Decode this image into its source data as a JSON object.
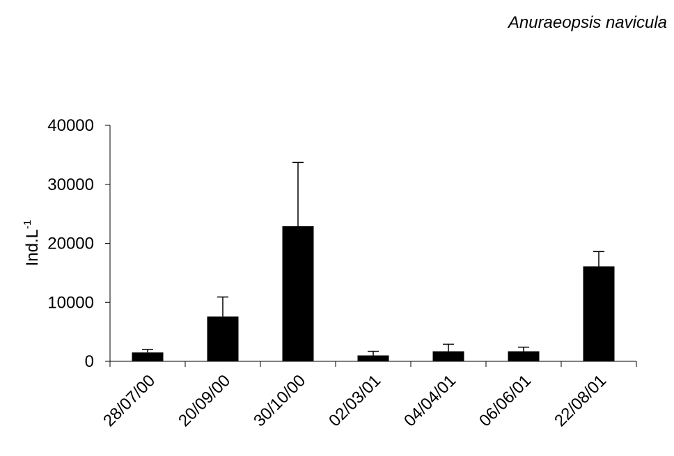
{
  "chart_data": {
    "type": "bar",
    "title": "Anuraeopsis navicula",
    "ylabel": "Ind.L",
    "ylabel_superscript": "-1",
    "xlabel": "",
    "categories": [
      "28/07/00",
      "20/09/00",
      "30/10/00",
      "02/03/01",
      "04/04/01",
      "06/06/01",
      "22/08/01"
    ],
    "values": [
      1500,
      7600,
      22900,
      1000,
      1700,
      1700,
      16100
    ],
    "error_upper": [
      500,
      3300,
      10800,
      700,
      1200,
      700,
      2500
    ],
    "ylim": [
      0,
      40000
    ],
    "yticks": [
      0,
      10000,
      20000,
      30000,
      40000
    ],
    "ytick_labels": [
      "0",
      "10000",
      "20000",
      "30000",
      "40000"
    ],
    "grid": false,
    "legend": "none",
    "bar_color": "#000000"
  }
}
